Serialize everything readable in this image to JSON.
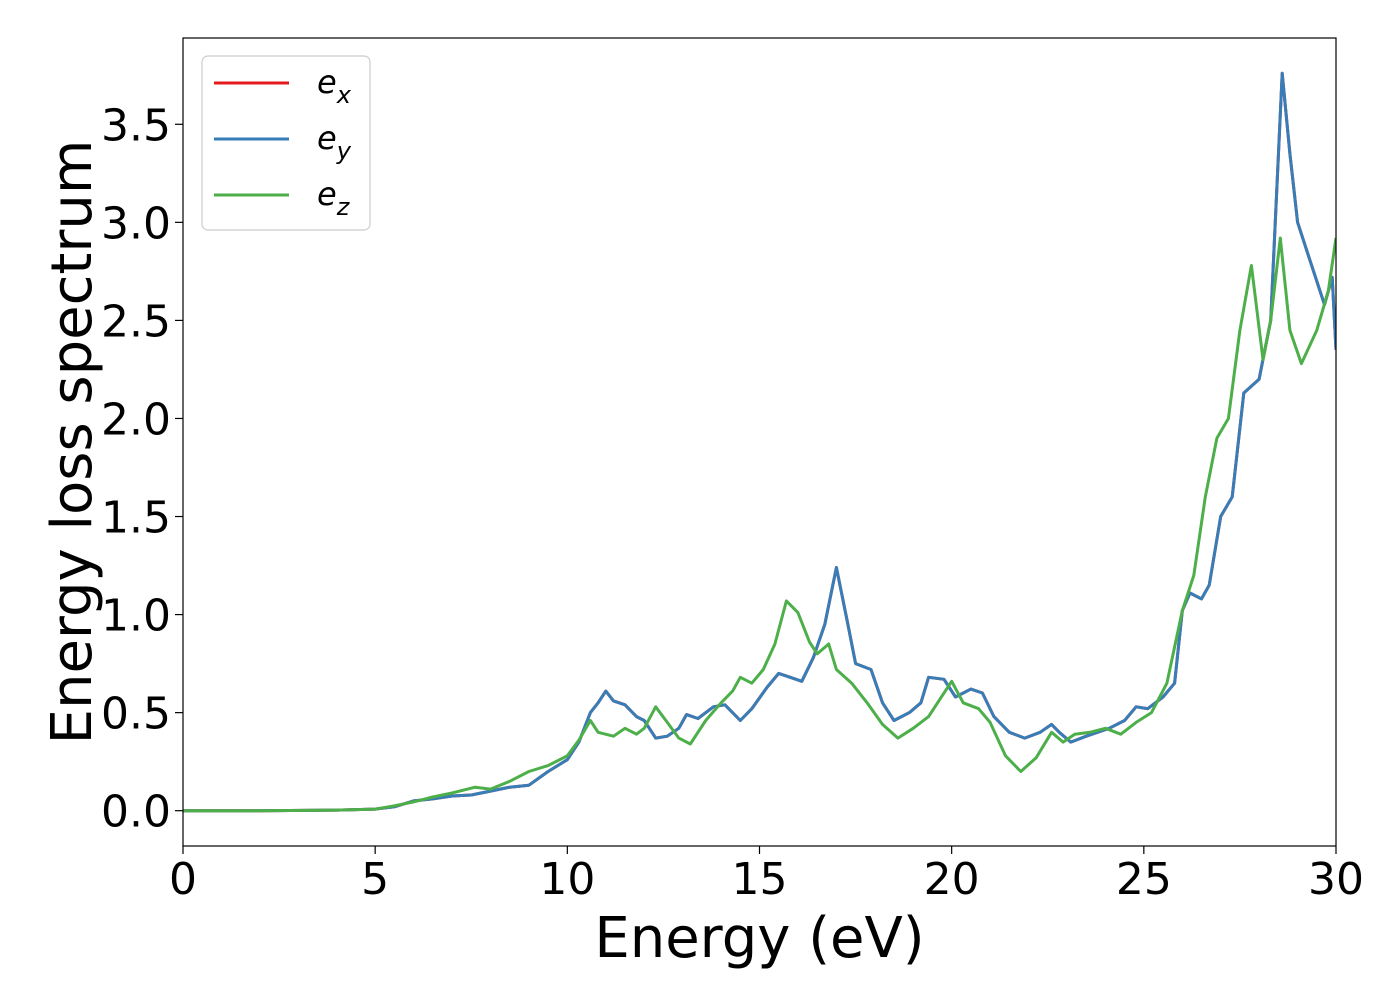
{
  "chart_data": {
    "type": "line",
    "title": "",
    "xlabel": "Energy (eV)",
    "ylabel": "Energy loss spectrum",
    "xlim": [
      0,
      30
    ],
    "ylim": [
      -0.18,
      3.94
    ],
    "xticks": [
      0,
      5,
      10,
      15,
      20,
      25,
      30
    ],
    "xtick_labels": [
      "0",
      "5",
      "10",
      "15",
      "20",
      "25",
      "30"
    ],
    "yticks": [
      0.0,
      0.5,
      1.0,
      1.5,
      2.0,
      2.5,
      3.0,
      3.5
    ],
    "ytick_labels": [
      "0.0",
      "0.5",
      "1.0",
      "1.5",
      "2.0",
      "2.5",
      "3.0",
      "3.5"
    ],
    "grid": false,
    "legend": "top-left",
    "series": [
      {
        "name": "e",
        "sub": "x",
        "color": "#e41a1c",
        "points": [
          [
            0,
            0.0
          ],
          [
            2,
            0.0
          ],
          [
            4,
            0.003
          ],
          [
            5,
            0.008
          ],
          [
            5.5,
            0.02
          ],
          [
            6,
            0.05
          ],
          [
            6.5,
            0.06
          ],
          [
            7,
            0.075
          ],
          [
            7.5,
            0.08
          ],
          [
            8,
            0.1
          ],
          [
            8.5,
            0.12
          ],
          [
            9,
            0.13
          ],
          [
            9.5,
            0.2
          ],
          [
            10,
            0.26
          ],
          [
            10.3,
            0.35
          ],
          [
            10.6,
            0.5
          ],
          [
            10.8,
            0.55
          ],
          [
            11,
            0.61
          ],
          [
            11.2,
            0.56
          ],
          [
            11.5,
            0.54
          ],
          [
            11.8,
            0.48
          ],
          [
            12,
            0.46
          ],
          [
            12.3,
            0.37
          ],
          [
            12.6,
            0.38
          ],
          [
            12.9,
            0.42
          ],
          [
            13.1,
            0.49
          ],
          [
            13.4,
            0.47
          ],
          [
            13.8,
            0.53
          ],
          [
            14.1,
            0.54
          ],
          [
            14.5,
            0.46
          ],
          [
            14.8,
            0.52
          ],
          [
            15.2,
            0.63
          ],
          [
            15.5,
            0.7
          ],
          [
            15.8,
            0.68
          ],
          [
            16.1,
            0.66
          ],
          [
            16.4,
            0.78
          ],
          [
            16.7,
            0.95
          ],
          [
            17,
            1.24
          ],
          [
            17.3,
            0.95
          ],
          [
            17.5,
            0.75
          ],
          [
            17.9,
            0.72
          ],
          [
            18.2,
            0.55
          ],
          [
            18.5,
            0.46
          ],
          [
            18.9,
            0.5
          ],
          [
            19.2,
            0.55
          ],
          [
            19.4,
            0.68
          ],
          [
            19.8,
            0.67
          ],
          [
            20.1,
            0.58
          ],
          [
            20.5,
            0.62
          ],
          [
            20.8,
            0.6
          ],
          [
            21.1,
            0.48
          ],
          [
            21.5,
            0.4
          ],
          [
            21.9,
            0.37
          ],
          [
            22.3,
            0.4
          ],
          [
            22.6,
            0.44
          ],
          [
            22.8,
            0.4
          ],
          [
            23.1,
            0.35
          ],
          [
            23.5,
            0.38
          ],
          [
            24.1,
            0.42
          ],
          [
            24.5,
            0.46
          ],
          [
            24.8,
            0.53
          ],
          [
            25.1,
            0.52
          ],
          [
            25.5,
            0.58
          ],
          [
            25.8,
            0.65
          ],
          [
            26,
            1.02
          ],
          [
            26.2,
            1.11
          ],
          [
            26.5,
            1.08
          ],
          [
            26.7,
            1.15
          ],
          [
            27,
            1.5
          ],
          [
            27.3,
            1.6
          ],
          [
            27.6,
            2.13
          ],
          [
            28,
            2.2
          ],
          [
            28.3,
            2.5
          ],
          [
            28.6,
            3.76
          ],
          [
            28.8,
            3.35
          ],
          [
            29,
            3.0
          ],
          [
            29.3,
            2.82
          ],
          [
            29.7,
            2.58
          ],
          [
            29.9,
            2.72
          ],
          [
            30,
            2.35
          ]
        ]
      },
      {
        "name": "e",
        "sub": "y",
        "color": "#377eb8",
        "points": [
          [
            0,
            0.0
          ],
          [
            2,
            0.0
          ],
          [
            4,
            0.003
          ],
          [
            5,
            0.008
          ],
          [
            5.5,
            0.02
          ],
          [
            6,
            0.05
          ],
          [
            6.5,
            0.06
          ],
          [
            7,
            0.075
          ],
          [
            7.5,
            0.08
          ],
          [
            8,
            0.1
          ],
          [
            8.5,
            0.12
          ],
          [
            9,
            0.13
          ],
          [
            9.5,
            0.2
          ],
          [
            10,
            0.26
          ],
          [
            10.3,
            0.35
          ],
          [
            10.6,
            0.5
          ],
          [
            10.8,
            0.55
          ],
          [
            11,
            0.61
          ],
          [
            11.2,
            0.56
          ],
          [
            11.5,
            0.54
          ],
          [
            11.8,
            0.48
          ],
          [
            12,
            0.46
          ],
          [
            12.3,
            0.37
          ],
          [
            12.6,
            0.38
          ],
          [
            12.9,
            0.42
          ],
          [
            13.1,
            0.49
          ],
          [
            13.4,
            0.47
          ],
          [
            13.8,
            0.53
          ],
          [
            14.1,
            0.54
          ],
          [
            14.5,
            0.46
          ],
          [
            14.8,
            0.52
          ],
          [
            15.2,
            0.63
          ],
          [
            15.5,
            0.7
          ],
          [
            15.8,
            0.68
          ],
          [
            16.1,
            0.66
          ],
          [
            16.4,
            0.78
          ],
          [
            16.7,
            0.95
          ],
          [
            17,
            1.24
          ],
          [
            17.3,
            0.95
          ],
          [
            17.5,
            0.75
          ],
          [
            17.9,
            0.72
          ],
          [
            18.2,
            0.55
          ],
          [
            18.5,
            0.46
          ],
          [
            18.9,
            0.5
          ],
          [
            19.2,
            0.55
          ],
          [
            19.4,
            0.68
          ],
          [
            19.8,
            0.67
          ],
          [
            20.1,
            0.58
          ],
          [
            20.5,
            0.62
          ],
          [
            20.8,
            0.6
          ],
          [
            21.1,
            0.48
          ],
          [
            21.5,
            0.4
          ],
          [
            21.9,
            0.37
          ],
          [
            22.3,
            0.4
          ],
          [
            22.6,
            0.44
          ],
          [
            22.8,
            0.4
          ],
          [
            23.1,
            0.35
          ],
          [
            23.5,
            0.38
          ],
          [
            24.1,
            0.42
          ],
          [
            24.5,
            0.46
          ],
          [
            24.8,
            0.53
          ],
          [
            25.1,
            0.52
          ],
          [
            25.5,
            0.58
          ],
          [
            25.8,
            0.65
          ],
          [
            26,
            1.02
          ],
          [
            26.2,
            1.11
          ],
          [
            26.5,
            1.08
          ],
          [
            26.7,
            1.15
          ],
          [
            27,
            1.5
          ],
          [
            27.3,
            1.6
          ],
          [
            27.6,
            2.13
          ],
          [
            28,
            2.2
          ],
          [
            28.3,
            2.5
          ],
          [
            28.6,
            3.76
          ],
          [
            28.8,
            3.35
          ],
          [
            29,
            3.0
          ],
          [
            29.3,
            2.82
          ],
          [
            29.7,
            2.58
          ],
          [
            29.9,
            2.72
          ],
          [
            30,
            2.35
          ]
        ]
      },
      {
        "name": "e",
        "sub": "z",
        "color": "#4daf4a",
        "points": [
          [
            0,
            0.0
          ],
          [
            2,
            0.0
          ],
          [
            4,
            0.003
          ],
          [
            5,
            0.008
          ],
          [
            5.5,
            0.025
          ],
          [
            6,
            0.045
          ],
          [
            6.5,
            0.07
          ],
          [
            7,
            0.09
          ],
          [
            7.6,
            0.12
          ],
          [
            8,
            0.11
          ],
          [
            8.5,
            0.15
          ],
          [
            9,
            0.2
          ],
          [
            9.5,
            0.23
          ],
          [
            10,
            0.28
          ],
          [
            10.3,
            0.36
          ],
          [
            10.6,
            0.46
          ],
          [
            10.8,
            0.4
          ],
          [
            11.2,
            0.38
          ],
          [
            11.5,
            0.42
          ],
          [
            11.8,
            0.39
          ],
          [
            12,
            0.42
          ],
          [
            12.3,
            0.53
          ],
          [
            12.6,
            0.45
          ],
          [
            12.9,
            0.37
          ],
          [
            13.2,
            0.34
          ],
          [
            13.6,
            0.46
          ],
          [
            14,
            0.55
          ],
          [
            14.3,
            0.61
          ],
          [
            14.5,
            0.68
          ],
          [
            14.8,
            0.65
          ],
          [
            15.1,
            0.72
          ],
          [
            15.4,
            0.85
          ],
          [
            15.7,
            1.07
          ],
          [
            16,
            1.01
          ],
          [
            16.3,
            0.86
          ],
          [
            16.5,
            0.8
          ],
          [
            16.8,
            0.85
          ],
          [
            17,
            0.72
          ],
          [
            17.4,
            0.65
          ],
          [
            17.8,
            0.55
          ],
          [
            18.2,
            0.44
          ],
          [
            18.6,
            0.37
          ],
          [
            19,
            0.42
          ],
          [
            19.4,
            0.48
          ],
          [
            19.7,
            0.57
          ],
          [
            20,
            0.66
          ],
          [
            20.3,
            0.55
          ],
          [
            20.7,
            0.52
          ],
          [
            21,
            0.45
          ],
          [
            21.4,
            0.28
          ],
          [
            21.8,
            0.2
          ],
          [
            22.2,
            0.27
          ],
          [
            22.6,
            0.4
          ],
          [
            22.9,
            0.35
          ],
          [
            23.2,
            0.39
          ],
          [
            23.6,
            0.4
          ],
          [
            24,
            0.42
          ],
          [
            24.4,
            0.39
          ],
          [
            24.8,
            0.45
          ],
          [
            25.2,
            0.5
          ],
          [
            25.6,
            0.65
          ],
          [
            26,
            1.02
          ],
          [
            26.3,
            1.2
          ],
          [
            26.6,
            1.6
          ],
          [
            26.9,
            1.9
          ],
          [
            27.2,
            2.0
          ],
          [
            27.5,
            2.45
          ],
          [
            27.8,
            2.78
          ],
          [
            28.1,
            2.3
          ],
          [
            28.3,
            2.5
          ],
          [
            28.55,
            2.92
          ],
          [
            28.8,
            2.45
          ],
          [
            29.1,
            2.28
          ],
          [
            29.5,
            2.45
          ],
          [
            29.8,
            2.65
          ],
          [
            30,
            2.92
          ]
        ]
      }
    ]
  }
}
